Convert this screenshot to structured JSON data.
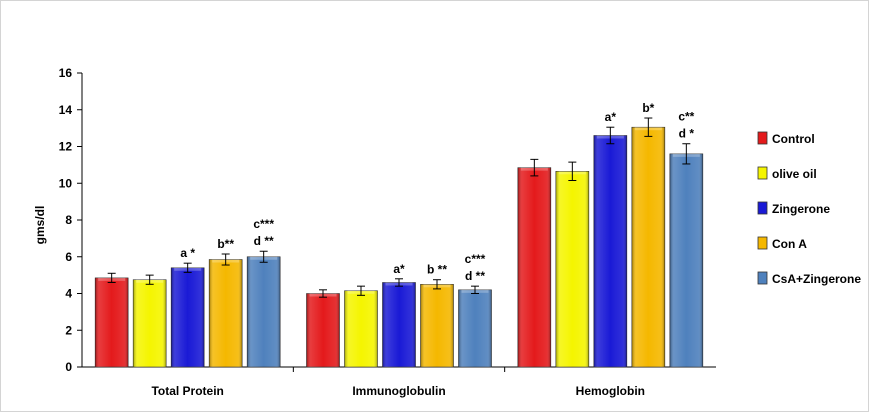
{
  "chart_data": {
    "type": "bar",
    "title": "",
    "xlabel": "",
    "ylabel": "gms/dl",
    "ylim": [
      0,
      16
    ],
    "yticks": [
      0,
      2,
      4,
      6,
      8,
      10,
      12,
      14,
      16
    ],
    "grid": false,
    "legend_position": "right",
    "categories": [
      "Total Protein",
      "Immunoglobulin",
      "Hemoglobin"
    ],
    "series": [
      {
        "name": "Control",
        "color": "#e41a1c",
        "values": [
          4.85,
          4.0,
          10.85
        ],
        "errors": [
          0.25,
          0.2,
          0.45
        ],
        "annotations": [
          [],
          [],
          []
        ]
      },
      {
        "name": "olive oil",
        "color": "#f5f500",
        "values": [
          4.75,
          4.15,
          10.65
        ],
        "errors": [
          0.25,
          0.25,
          0.5
        ],
        "annotations": [
          [],
          [],
          []
        ]
      },
      {
        "name": "Zingerone",
        "color": "#1a1ad6",
        "values": [
          5.4,
          4.6,
          12.6
        ],
        "errors": [
          0.25,
          0.2,
          0.45
        ],
        "annotations": [
          [
            "a *"
          ],
          [
            "a*"
          ],
          [
            "a*"
          ]
        ]
      },
      {
        "name": "Con A",
        "color": "#f5b800",
        "values": [
          5.85,
          4.5,
          13.05
        ],
        "errors": [
          0.3,
          0.25,
          0.5
        ],
        "annotations": [
          [
            "b**"
          ],
          [
            "b **"
          ],
          [
            "b*"
          ]
        ]
      },
      {
        "name": "CsA+Zingerone",
        "color": "#4f81bd",
        "values": [
          6.0,
          4.2,
          11.6
        ],
        "errors": [
          0.3,
          0.2,
          0.55
        ],
        "annotations": [
          [
            "c***",
            "d **"
          ],
          [
            "c***",
            "d **"
          ],
          [
            "c**",
            "d *"
          ]
        ]
      }
    ]
  }
}
